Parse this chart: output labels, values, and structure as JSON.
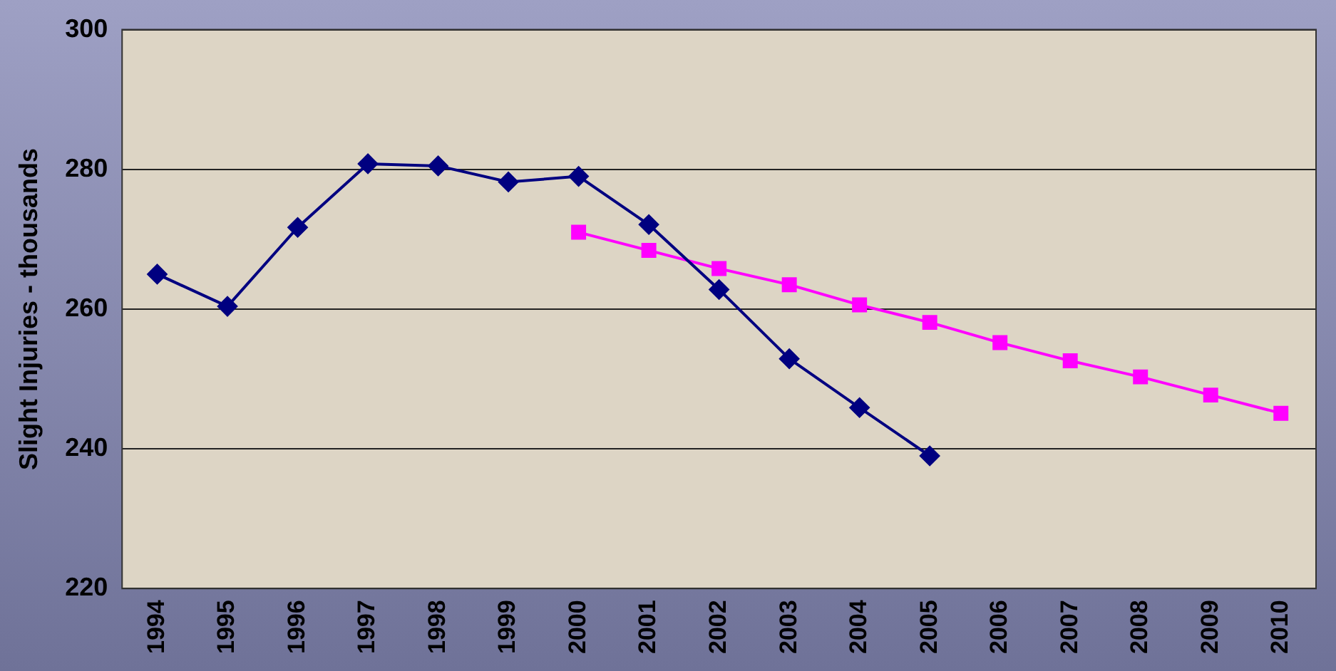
{
  "chart_data": {
    "type": "line",
    "ylabel": "Slight Injuries - thousands",
    "categories": [
      "1994",
      "1995",
      "1996",
      "1997",
      "1998",
      "1999",
      "2000",
      "2001",
      "2002",
      "2003",
      "2004",
      "2005",
      "2006",
      "2007",
      "2008",
      "2009",
      "2010"
    ],
    "series": [
      {
        "color": "#000080",
        "marker": "diamond",
        "values": [
          265.0,
          260.4,
          271.7,
          280.8,
          280.5,
          278.2,
          279.0,
          272.1,
          262.8,
          252.9,
          245.9,
          239.0,
          null,
          null,
          null,
          null,
          null
        ]
      },
      {
        "color": "#ff00ff",
        "marker": "square",
        "values": [
          null,
          null,
          null,
          null,
          null,
          null,
          271.0,
          268.4,
          265.8,
          263.5,
          260.6,
          258.1,
          255.2,
          252.6,
          250.3,
          247.7,
          245.1
        ]
      }
    ],
    "ylim": [
      220,
      300
    ],
    "yticks": [
      220,
      240,
      260,
      280,
      300
    ],
    "grid": "y",
    "legend": false,
    "line_style": "solid"
  }
}
